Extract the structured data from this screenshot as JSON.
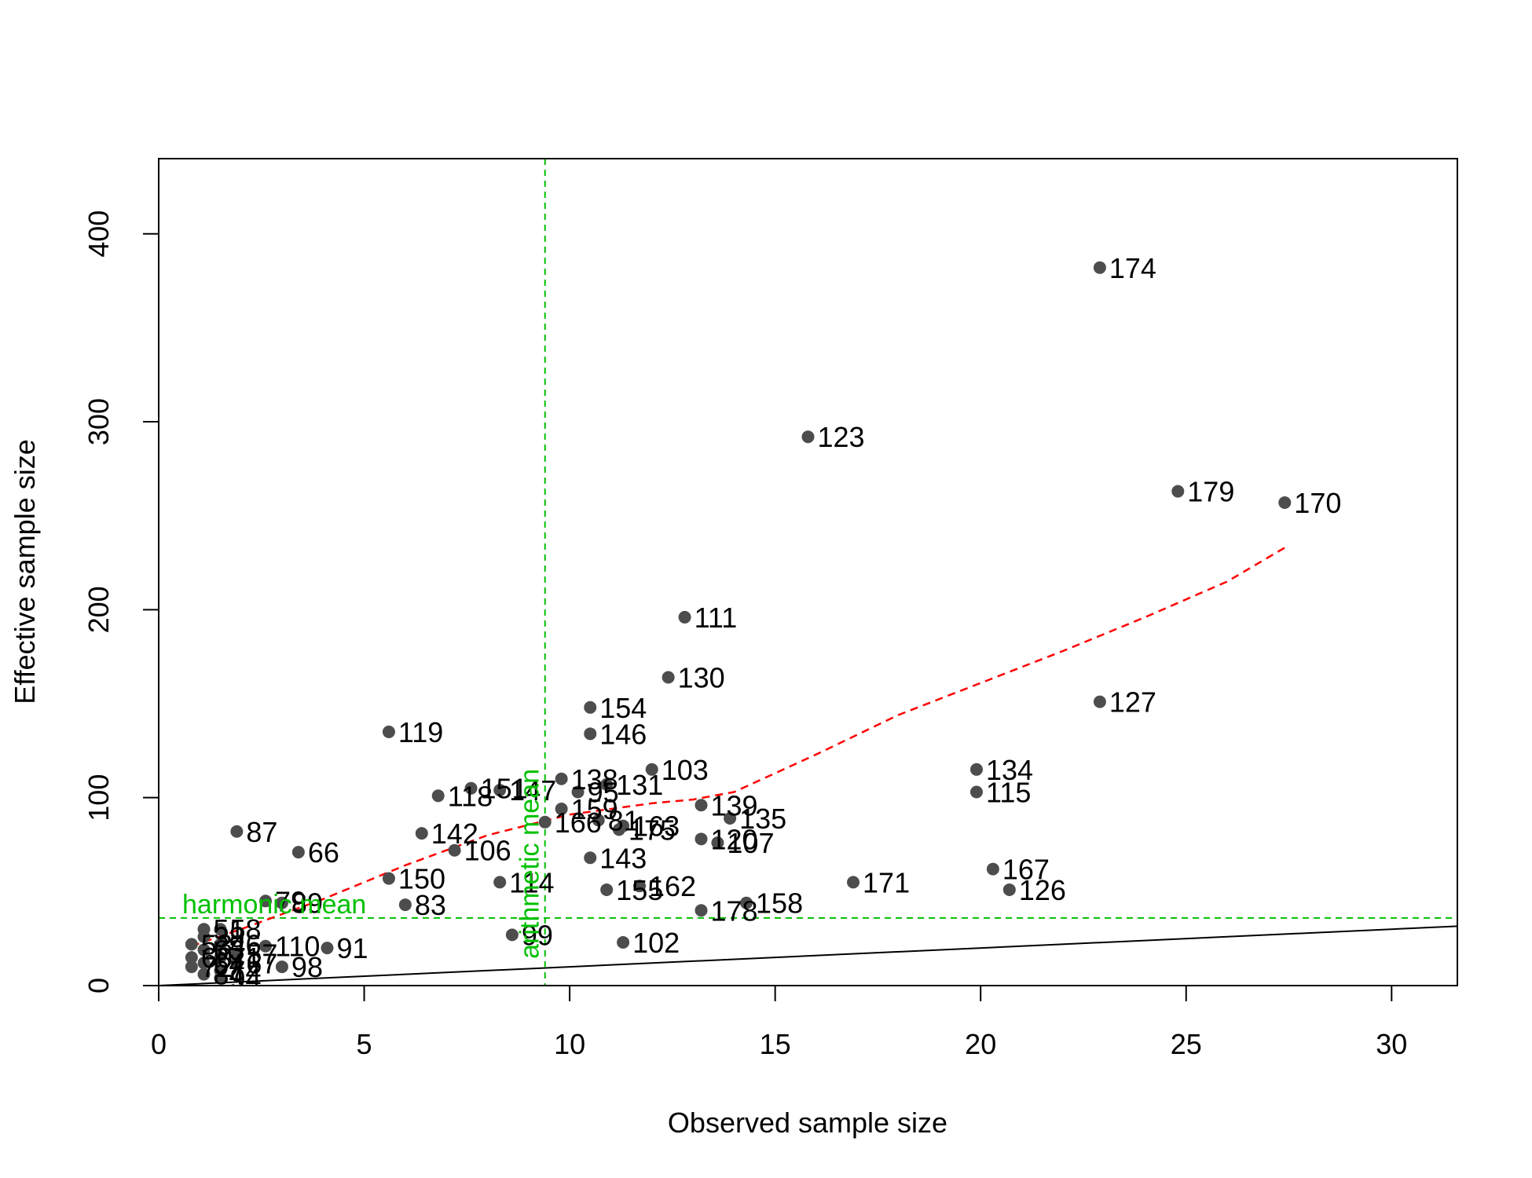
{
  "chart_data": {
    "type": "scatter",
    "title": "",
    "xlabel": "Observed sample size",
    "ylabel": "Effective sample size",
    "xlim": [
      0,
      31.6
    ],
    "ylim": [
      0,
      440
    ],
    "xticks": [
      0,
      5,
      10,
      15,
      20,
      25,
      30
    ],
    "yticks": [
      0,
      100,
      200,
      300,
      400
    ],
    "grid": false,
    "colors": {
      "points": "#4d4d4d",
      "loess": "#ff0000",
      "reference": "#00c000",
      "identity": "#000000"
    },
    "points": [
      {
        "x": 22.9,
        "y": 382,
        "label": "174"
      },
      {
        "x": 15.8,
        "y": 292,
        "label": "123"
      },
      {
        "x": 24.8,
        "y": 263,
        "label": "179"
      },
      {
        "x": 27.4,
        "y": 257,
        "label": "170"
      },
      {
        "x": 12.8,
        "y": 196,
        "label": "111"
      },
      {
        "x": 12.4,
        "y": 164,
        "label": "130"
      },
      {
        "x": 22.9,
        "y": 151,
        "label": "127"
      },
      {
        "x": 10.5,
        "y": 148,
        "label": "154"
      },
      {
        "x": 10.5,
        "y": 134,
        "label": "146"
      },
      {
        "x": 5.6,
        "y": 135,
        "label": "119"
      },
      {
        "x": 19.9,
        "y": 115,
        "label": "134"
      },
      {
        "x": 12.0,
        "y": 115,
        "label": "103"
      },
      {
        "x": 19.9,
        "y": 103,
        "label": "115"
      },
      {
        "x": 9.8,
        "y": 110,
        "label": "138"
      },
      {
        "x": 10.9,
        "y": 107,
        "label": "131"
      },
      {
        "x": 7.6,
        "y": 105,
        "label": "151"
      },
      {
        "x": 8.3,
        "y": 104,
        "label": "147"
      },
      {
        "x": 10.2,
        "y": 103,
        "label": "95"
      },
      {
        "x": 6.8,
        "y": 101,
        "label": "118"
      },
      {
        "x": 13.2,
        "y": 96,
        "label": "139"
      },
      {
        "x": 9.8,
        "y": 94,
        "label": "159"
      },
      {
        "x": 13.9,
        "y": 89,
        "label": "135"
      },
      {
        "x": 10.7,
        "y": 88,
        "label": "81"
      },
      {
        "x": 9.4,
        "y": 87,
        "label": "166"
      },
      {
        "x": 11.3,
        "y": 85,
        "label": "163"
      },
      {
        "x": 11.2,
        "y": 83,
        "label": "175"
      },
      {
        "x": 1.9,
        "y": 82,
        "label": "87"
      },
      {
        "x": 6.4,
        "y": 81,
        "label": "142"
      },
      {
        "x": 13.2,
        "y": 78,
        "label": "120"
      },
      {
        "x": 13.6,
        "y": 76,
        "label": "107"
      },
      {
        "x": 7.2,
        "y": 72,
        "label": "106"
      },
      {
        "x": 3.4,
        "y": 71,
        "label": "66"
      },
      {
        "x": 10.5,
        "y": 68,
        "label": "143"
      },
      {
        "x": 20.3,
        "y": 62,
        "label": "167"
      },
      {
        "x": 5.6,
        "y": 57,
        "label": "150"
      },
      {
        "x": 8.3,
        "y": 55,
        "label": "114"
      },
      {
        "x": 16.9,
        "y": 55,
        "label": "171"
      },
      {
        "x": 11.7,
        "y": 53,
        "label": "162"
      },
      {
        "x": 10.9,
        "y": 51,
        "label": "155"
      },
      {
        "x": 20.7,
        "y": 51,
        "label": "126"
      },
      {
        "x": 2.6,
        "y": 45,
        "label": "79"
      },
      {
        "x": 3.0,
        "y": 44,
        "label": "89"
      },
      {
        "x": 14.3,
        "y": 44,
        "label": "158"
      },
      {
        "x": 6.0,
        "y": 43,
        "label": "83"
      },
      {
        "x": 13.2,
        "y": 40,
        "label": "178"
      },
      {
        "x": 1.1,
        "y": 30,
        "label": "51"
      },
      {
        "x": 1.5,
        "y": 30,
        "label": "58"
      },
      {
        "x": 8.6,
        "y": 27,
        "label": "99"
      },
      {
        "x": 1.1,
        "y": 26,
        "label": "38"
      },
      {
        "x": 11.3,
        "y": 23,
        "label": "102"
      },
      {
        "x": 0.8,
        "y": 22,
        "label": "53"
      },
      {
        "x": 1.5,
        "y": 22,
        "label": "46"
      },
      {
        "x": 2.6,
        "y": 21,
        "label": "110"
      },
      {
        "x": 4.1,
        "y": 20,
        "label": "91"
      },
      {
        "x": 1.1,
        "y": 19,
        "label": "63"
      },
      {
        "x": 1.9,
        "y": 17,
        "label": "57"
      },
      {
        "x": 0.8,
        "y": 15,
        "label": "60"
      },
      {
        "x": 1.5,
        "y": 15,
        "label": "71"
      },
      {
        "x": 1.1,
        "y": 12,
        "label": "64"
      },
      {
        "x": 1.9,
        "y": 12,
        "label": "67"
      },
      {
        "x": 0.8,
        "y": 10,
        "label": "72"
      },
      {
        "x": 3.0,
        "y": 10,
        "label": "98"
      },
      {
        "x": 1.5,
        "y": 8,
        "label": "74"
      },
      {
        "x": 1.1,
        "y": 6,
        "label": "84"
      },
      {
        "x": 1.5,
        "y": 4,
        "label": "94"
      }
    ],
    "loess_curve": [
      [
        0.8,
        21
      ],
      [
        2,
        30
      ],
      [
        4,
        46
      ],
      [
        6,
        64
      ],
      [
        8,
        80
      ],
      [
        10,
        91
      ],
      [
        12,
        97
      ],
      [
        13,
        99
      ],
      [
        14,
        103
      ],
      [
        16,
        123
      ],
      [
        18,
        144
      ],
      [
        20,
        161
      ],
      [
        22,
        178
      ],
      [
        24,
        196
      ],
      [
        26,
        215
      ],
      [
        27.4,
        233
      ]
    ],
    "identity_line": {
      "slope": 1,
      "intercept": 0
    },
    "reference_lines": {
      "harmonic_mean": {
        "axis": "y",
        "value": 36,
        "label": "harmonic mean"
      },
      "arithmetic_mean": {
        "axis": "x",
        "value": 9.4,
        "label": "arithmetic mean"
      }
    }
  }
}
